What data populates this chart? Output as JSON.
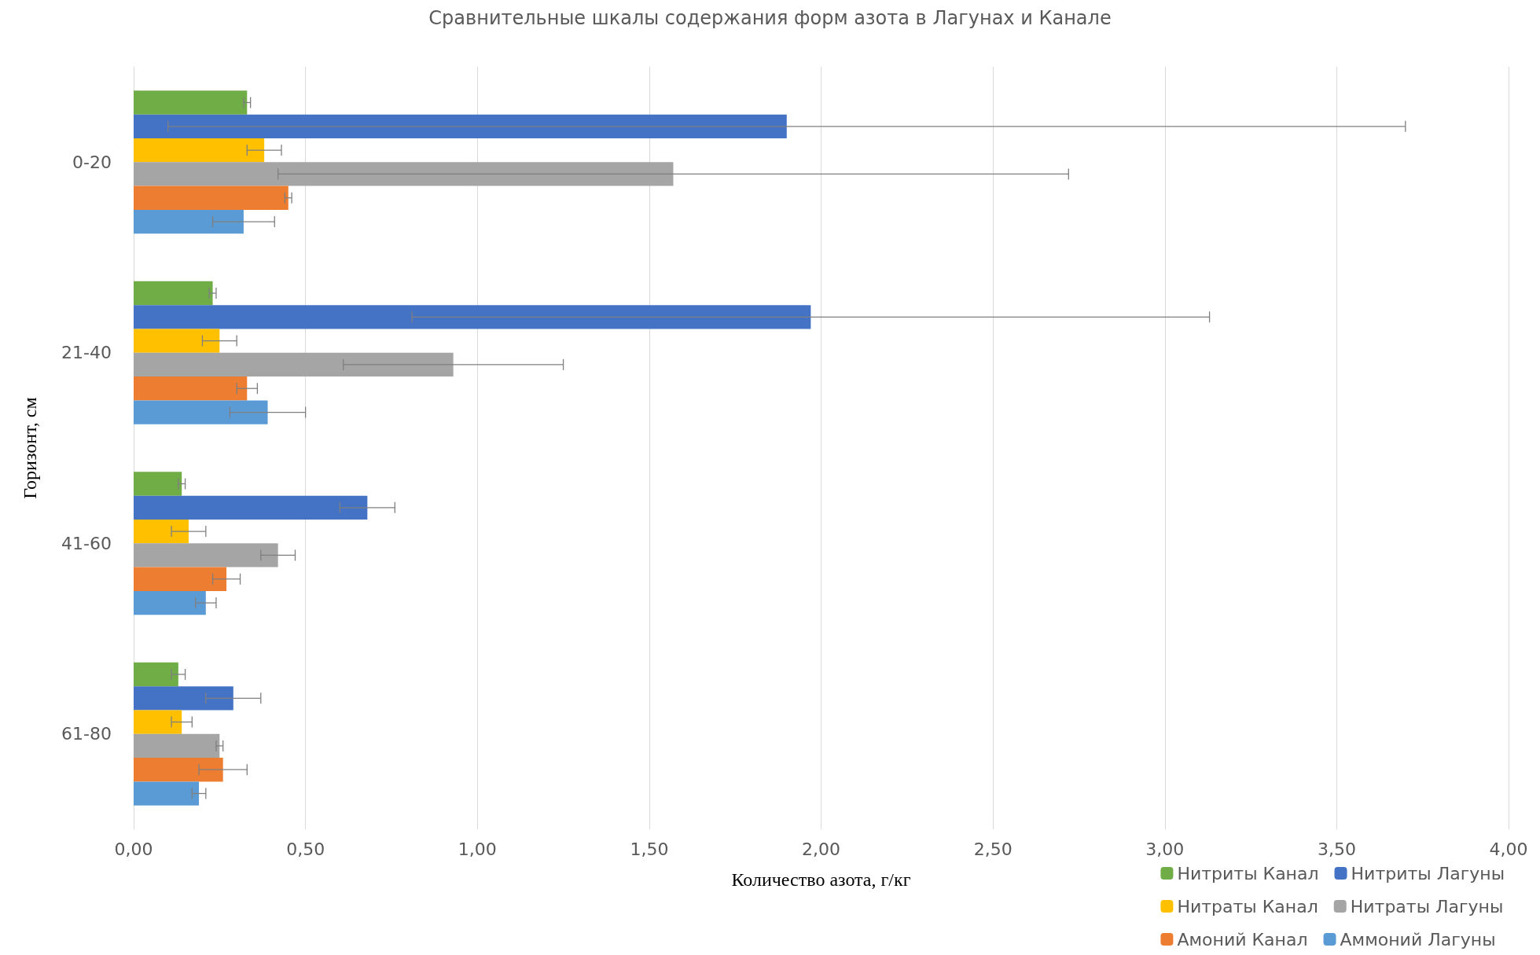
{
  "chart_data": {
    "type": "bar",
    "orientation": "horizontal",
    "title": "Сравнительные шкалы содержания форм азота в Лагунах и Канале",
    "xlabel": "Количество азота, г/кг",
    "ylabel": "Горизонт, см",
    "categories": [
      "0-20",
      "21-40",
      "41-60",
      "61-80"
    ],
    "series": [
      {
        "name": "Нитриты Канал",
        "color": "#70ad47",
        "values": [
          0.33,
          0.23,
          0.14,
          0.13
        ],
        "errors": [
          0.01,
          0.01,
          0.01,
          0.02
        ]
      },
      {
        "name": "Нитриты Лагуны",
        "color": "#4472c4",
        "values": [
          1.9,
          1.97,
          0.68,
          0.29
        ],
        "errors": [
          1.8,
          1.16,
          0.08,
          0.08
        ]
      },
      {
        "name": "Нитраты Канал",
        "color": "#ffc000",
        "values": [
          0.38,
          0.25,
          0.16,
          0.14
        ],
        "errors": [
          0.05,
          0.05,
          0.05,
          0.03
        ]
      },
      {
        "name": "Нитраты Лагуны",
        "color": "#a5a5a5",
        "values": [
          1.57,
          0.93,
          0.42,
          0.25
        ],
        "errors": [
          1.15,
          0.32,
          0.05,
          0.01
        ]
      },
      {
        "name": "Амоний Канал",
        "color": "#ed7d31",
        "values": [
          0.45,
          0.33,
          0.27,
          0.26
        ],
        "errors": [
          0.01,
          0.03,
          0.04,
          0.07
        ]
      },
      {
        "name": "Аммоний Лагуны",
        "color": "#5b9bd5",
        "values": [
          0.32,
          0.39,
          0.21,
          0.19
        ],
        "errors": [
          0.09,
          0.11,
          0.03,
          0.02
        ]
      }
    ],
    "xlim": [
      0,
      4
    ],
    "xticks": [
      {
        "value": 0,
        "label": "0,00"
      },
      {
        "value": 0.5,
        "label": "0,50"
      },
      {
        "value": 1,
        "label": "1,00"
      },
      {
        "value": 1.5,
        "label": "1,50"
      },
      {
        "value": 2,
        "label": "2,00"
      },
      {
        "value": 2.5,
        "label": "2,50"
      },
      {
        "value": 3,
        "label": "3,00"
      },
      {
        "value": 3.5,
        "label": "3,50"
      },
      {
        "value": 4,
        "label": "4,00"
      }
    ],
    "grid": "x",
    "legend": "bottom right"
  }
}
